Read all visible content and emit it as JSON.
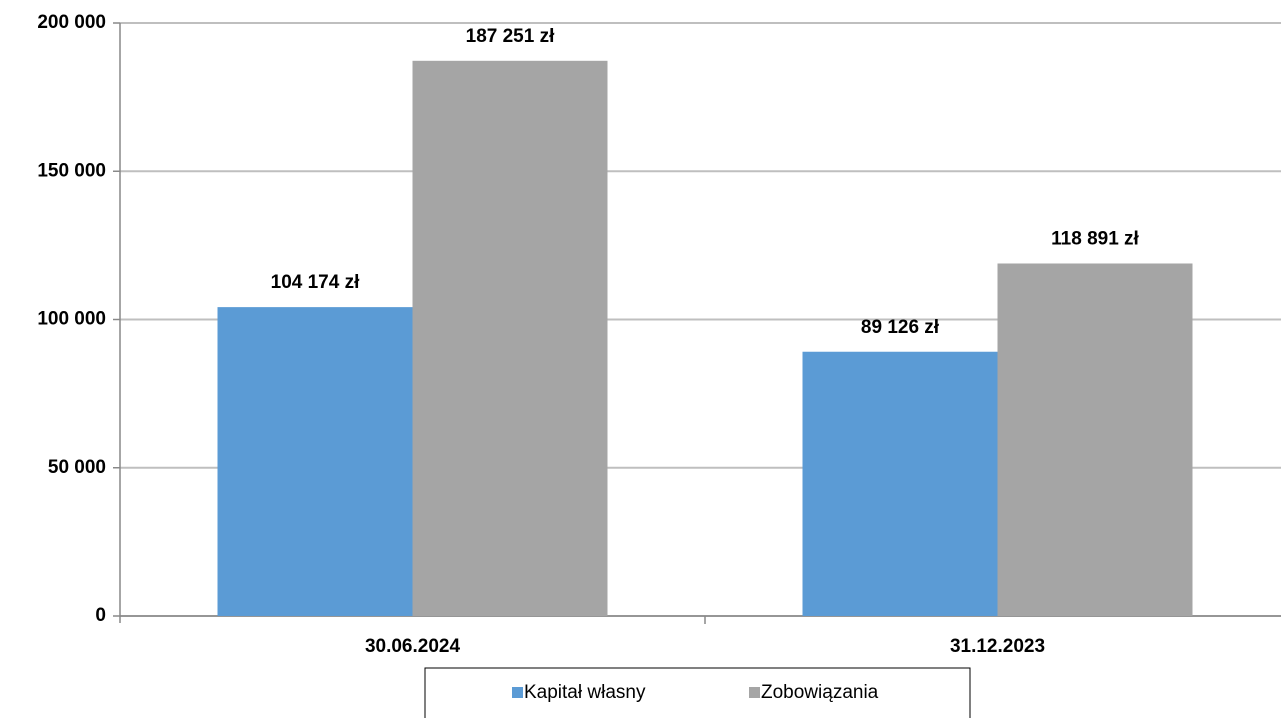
{
  "chart_data": {
    "type": "bar",
    "categories": [
      "30.06.2024",
      "31.12.2023"
    ],
    "series": [
      {
        "name": "Kapitał własny",
        "color": "#5b9bd5",
        "values": [
          104174,
          89126
        ],
        "value_labels": [
          "104 174 zł",
          "89 126 zł"
        ]
      },
      {
        "name": "Zobowiązania",
        "color": "#a5a5a5",
        "values": [
          187251,
          118891
        ],
        "value_labels": [
          "187 251 zł",
          "118 891 zł"
        ]
      }
    ],
    "ylim": [
      0,
      200000
    ],
    "yticks": [
      {
        "value": 0,
        "label": "0"
      },
      {
        "value": 50000,
        "label": "50 000"
      },
      {
        "value": 100000,
        "label": "100 000"
      },
      {
        "value": 150000,
        "label": "150 000"
      },
      {
        "value": 200000,
        "label": "200 000"
      }
    ],
    "grid": true,
    "legend": "bottom"
  }
}
